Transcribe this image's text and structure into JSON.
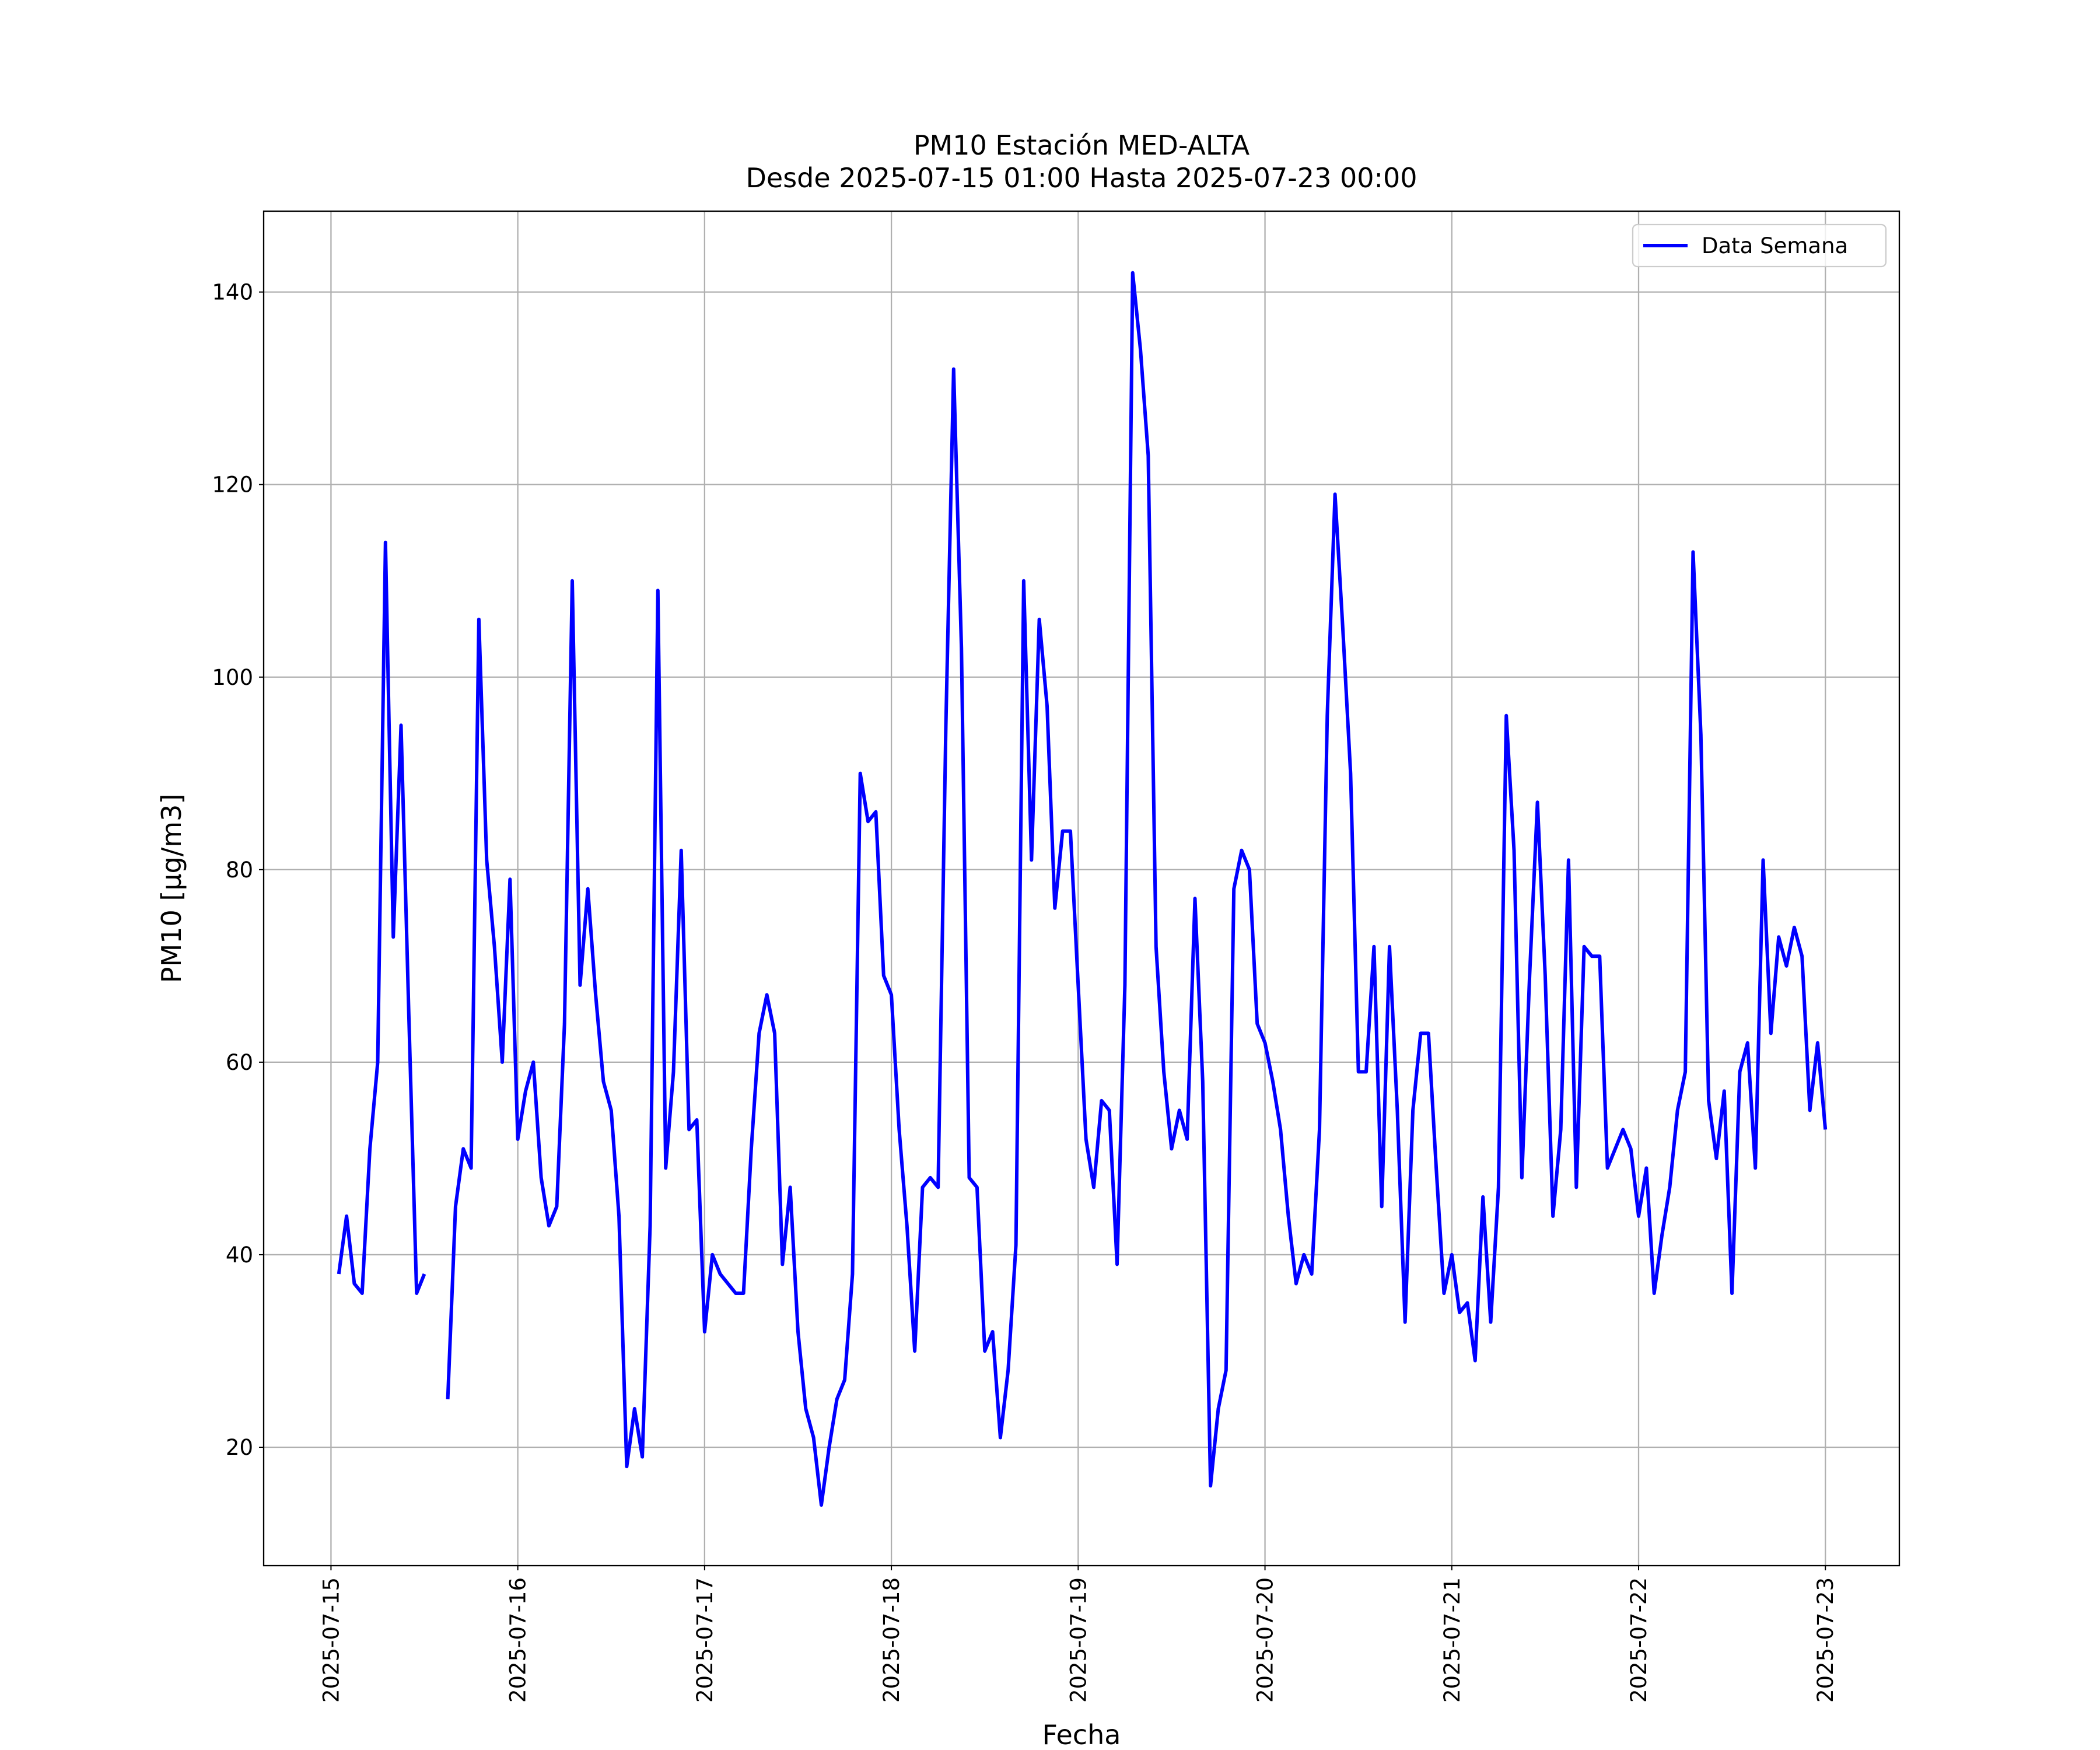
{
  "chart_data": {
    "type": "line",
    "title": "PM10 Estación MED-ALTA",
    "subtitle": "Desde 2025-07-15 01:00 Hasta 2025-07-23 00:00",
    "xlabel": "Fecha",
    "ylabel": "PM10 [μg/m3]",
    "x": [
      "2025-07-15 01:00",
      "2025-07-15 02:00",
      "2025-07-15 03:00",
      "2025-07-15 04:00",
      "2025-07-15 05:00",
      "2025-07-15 06:00",
      "2025-07-15 07:00",
      "2025-07-15 08:00",
      "2025-07-15 09:00",
      "2025-07-15 10:00",
      "2025-07-15 11:00",
      "2025-07-15 12:00",
      "2025-07-15 13:00",
      "2025-07-15 14:00",
      "2025-07-15 15:00",
      "2025-07-15 16:00",
      "2025-07-15 17:00",
      "2025-07-15 18:00",
      "2025-07-15 19:00",
      "2025-07-15 20:00",
      "2025-07-15 21:00",
      "2025-07-15 22:00",
      "2025-07-15 23:00",
      "2025-07-16 00:00",
      "2025-07-16 01:00",
      "2025-07-16 02:00",
      "2025-07-16 03:00",
      "2025-07-16 04:00",
      "2025-07-16 05:00",
      "2025-07-16 06:00",
      "2025-07-16 07:00",
      "2025-07-16 08:00",
      "2025-07-16 09:00",
      "2025-07-16 10:00",
      "2025-07-16 11:00",
      "2025-07-16 12:00",
      "2025-07-16 13:00",
      "2025-07-16 14:00",
      "2025-07-16 15:00",
      "2025-07-16 16:00",
      "2025-07-16 17:00",
      "2025-07-16 18:00",
      "2025-07-16 19:00",
      "2025-07-16 20:00",
      "2025-07-16 21:00",
      "2025-07-16 22:00",
      "2025-07-16 23:00",
      "2025-07-17 00:00",
      "2025-07-17 01:00",
      "2025-07-17 02:00",
      "2025-07-17 03:00",
      "2025-07-17 04:00",
      "2025-07-17 05:00",
      "2025-07-17 06:00",
      "2025-07-17 07:00",
      "2025-07-17 08:00",
      "2025-07-17 09:00",
      "2025-07-17 10:00",
      "2025-07-17 11:00",
      "2025-07-17 12:00",
      "2025-07-17 13:00",
      "2025-07-17 14:00",
      "2025-07-17 15:00",
      "2025-07-17 16:00",
      "2025-07-17 17:00",
      "2025-07-17 18:00",
      "2025-07-17 19:00",
      "2025-07-17 20:00",
      "2025-07-17 21:00",
      "2025-07-17 22:00",
      "2025-07-17 23:00",
      "2025-07-18 00:00",
      "2025-07-18 01:00",
      "2025-07-18 02:00",
      "2025-07-18 03:00",
      "2025-07-18 04:00",
      "2025-07-18 05:00",
      "2025-07-18 06:00",
      "2025-07-18 07:00",
      "2025-07-18 08:00",
      "2025-07-18 09:00",
      "2025-07-18 10:00",
      "2025-07-18 11:00",
      "2025-07-18 12:00",
      "2025-07-18 13:00",
      "2025-07-18 14:00",
      "2025-07-18 15:00",
      "2025-07-18 16:00",
      "2025-07-18 17:00",
      "2025-07-18 18:00",
      "2025-07-18 19:00",
      "2025-07-18 20:00",
      "2025-07-18 21:00",
      "2025-07-18 22:00",
      "2025-07-18 23:00",
      "2025-07-19 00:00",
      "2025-07-19 01:00",
      "2025-07-19 02:00",
      "2025-07-19 03:00",
      "2025-07-19 04:00",
      "2025-07-19 05:00",
      "2025-07-19 06:00",
      "2025-07-19 07:00",
      "2025-07-19 08:00",
      "2025-07-19 09:00",
      "2025-07-19 10:00",
      "2025-07-19 11:00",
      "2025-07-19 12:00",
      "2025-07-19 13:00",
      "2025-07-19 14:00",
      "2025-07-19 15:00",
      "2025-07-19 16:00",
      "2025-07-19 17:00",
      "2025-07-19 18:00",
      "2025-07-19 19:00",
      "2025-07-19 20:00",
      "2025-07-19 21:00",
      "2025-07-19 22:00",
      "2025-07-19 23:00",
      "2025-07-20 00:00",
      "2025-07-20 01:00",
      "2025-07-20 02:00",
      "2025-07-20 03:00",
      "2025-07-20 04:00",
      "2025-07-20 05:00",
      "2025-07-20 06:00",
      "2025-07-20 07:00",
      "2025-07-20 08:00",
      "2025-07-20 09:00",
      "2025-07-20 10:00",
      "2025-07-20 11:00",
      "2025-07-20 12:00",
      "2025-07-20 13:00",
      "2025-07-20 14:00",
      "2025-07-20 15:00",
      "2025-07-20 16:00",
      "2025-07-20 17:00",
      "2025-07-20 18:00",
      "2025-07-20 19:00",
      "2025-07-20 20:00",
      "2025-07-20 21:00",
      "2025-07-20 22:00",
      "2025-07-20 23:00",
      "2025-07-21 00:00",
      "2025-07-21 01:00",
      "2025-07-21 02:00",
      "2025-07-21 03:00",
      "2025-07-21 04:00",
      "2025-07-21 05:00",
      "2025-07-21 06:00",
      "2025-07-21 07:00",
      "2025-07-21 08:00",
      "2025-07-21 09:00",
      "2025-07-21 10:00",
      "2025-07-21 11:00",
      "2025-07-21 12:00",
      "2025-07-21 13:00",
      "2025-07-21 14:00",
      "2025-07-21 15:00",
      "2025-07-21 16:00",
      "2025-07-21 17:00",
      "2025-07-21 18:00",
      "2025-07-21 19:00",
      "2025-07-21 20:00",
      "2025-07-21 21:00",
      "2025-07-21 22:00",
      "2025-07-21 23:00",
      "2025-07-22 00:00",
      "2025-07-22 01:00",
      "2025-07-22 02:00",
      "2025-07-22 03:00",
      "2025-07-22 04:00",
      "2025-07-22 05:00",
      "2025-07-22 06:00",
      "2025-07-22 07:00",
      "2025-07-22 08:00",
      "2025-07-22 09:00",
      "2025-07-22 10:00",
      "2025-07-22 11:00",
      "2025-07-22 12:00",
      "2025-07-22 13:00",
      "2025-07-22 14:00",
      "2025-07-22 15:00",
      "2025-07-22 16:00",
      "2025-07-22 17:00",
      "2025-07-22 18:00",
      "2025-07-22 19:00",
      "2025-07-22 20:00",
      "2025-07-22 21:00",
      "2025-07-22 22:00",
      "2025-07-22 23:00",
      "2025-07-23 00:00"
    ],
    "series": [
      {
        "name": "Data Semana",
        "color": "#0000ff",
        "values": [
          38,
          44,
          37,
          36,
          51,
          60,
          114,
          73,
          95,
          65,
          36,
          38,
          null,
          null,
          25,
          45,
          51,
          49,
          106,
          81,
          72,
          60,
          79,
          52,
          57,
          60,
          48,
          43,
          45,
          64,
          110,
          68,
          78,
          67,
          58,
          55,
          44,
          18,
          24,
          19,
          43,
          109,
          49,
          59,
          82,
          53,
          54,
          32,
          40,
          38,
          37,
          36,
          36,
          51,
          63,
          67,
          63,
          39,
          47,
          32,
          24,
          21,
          14,
          20,
          25,
          27,
          38,
          90,
          85,
          86,
          69,
          67,
          53,
          43,
          30,
          47,
          48,
          47,
          95,
          132,
          103,
          48,
          47,
          30,
          32,
          21,
          28,
          41,
          110,
          81,
          106,
          97,
          76,
          84,
          84,
          68,
          52,
          47,
          56,
          55,
          39,
          68,
          142,
          134,
          123,
          72,
          59,
          51,
          55,
          52,
          77,
          58,
          16,
          24,
          28,
          78,
          82,
          80,
          64,
          62,
          58,
          53,
          44,
          37,
          40,
          38,
          53,
          96,
          119,
          105,
          90,
          59,
          59,
          72,
          45,
          72,
          55,
          33,
          55,
          63,
          63,
          49,
          36,
          40,
          34,
          35,
          29,
          46,
          33,
          47,
          96,
          82,
          48,
          69,
          87,
          69,
          44,
          53,
          81,
          47,
          72,
          71,
          71,
          49,
          51,
          53,
          51,
          44,
          49,
          36,
          42,
          47,
          55,
          59,
          113,
          94,
          56,
          50,
          57,
          36,
          59,
          62,
          49,
          81,
          63,
          73,
          70,
          74,
          71,
          55,
          62,
          53
        ]
      }
    ],
    "xlim": [
      "2025-07-14 15:21",
      "2025-07-23 09:30"
    ],
    "xticks": [
      "2025-07-15",
      "2025-07-16",
      "2025-07-17",
      "2025-07-18",
      "2025-07-19",
      "2025-07-20",
      "2025-07-21",
      "2025-07-22",
      "2025-07-23"
    ],
    "ylim": [
      7.7,
      148.4
    ],
    "yticks": [
      20,
      40,
      60,
      80,
      100,
      120,
      140
    ],
    "grid": true,
    "legend": "upper right"
  }
}
